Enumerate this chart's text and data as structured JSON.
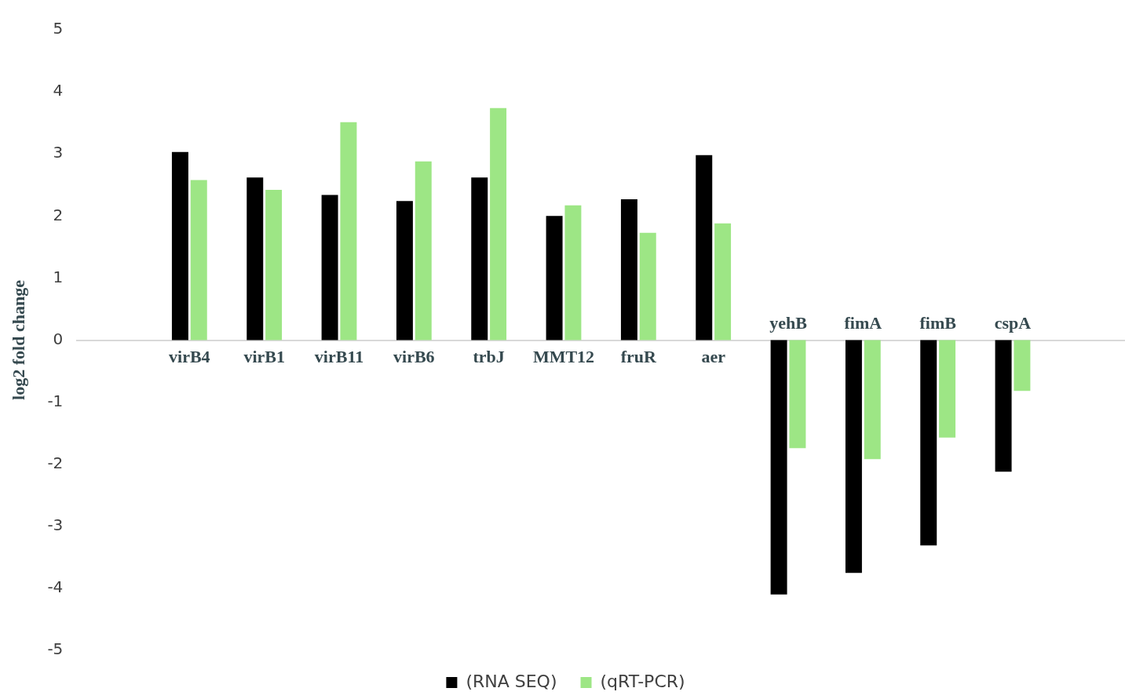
{
  "chart_data": {
    "type": "bar",
    "ylabel": "log2 fold change",
    "categories": [
      null,
      "virB4",
      "virB1",
      "virB11",
      "virB6",
      "trbJ",
      "MMT12",
      "fruR",
      "aer",
      "yehB",
      "fimA",
      "fimB",
      "cspA",
      null
    ],
    "series": [
      {
        "name": "(RNA SEQ)",
        "color": "#000000",
        "values": [
          null,
          3.03,
          2.62,
          2.34,
          2.24,
          2.62,
          2.0,
          2.27,
          2.98,
          -4.1,
          -3.75,
          -3.31,
          -2.12,
          null
        ]
      },
      {
        "name": "(qRT-PCR)",
        "color": "#9de685",
        "values": [
          null,
          2.58,
          2.42,
          3.51,
          2.88,
          3.74,
          2.17,
          1.73,
          1.88,
          -1.74,
          -1.92,
          -1.57,
          -0.82,
          null
        ]
      }
    ],
    "ylim": [
      -5,
      5
    ],
    "yticks": [
      -5,
      -4,
      -3,
      -2,
      -1,
      0,
      1,
      2,
      3,
      4,
      5
    ],
    "grid": false,
    "legend": "bottom"
  }
}
